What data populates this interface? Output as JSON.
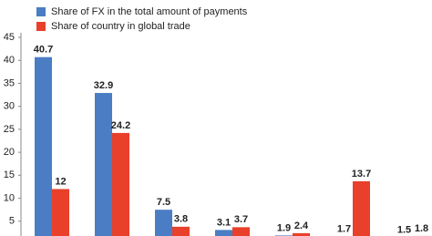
{
  "chart_data": {
    "type": "bar",
    "categories": [
      null,
      null,
      null,
      null,
      null,
      null,
      null
    ],
    "series": [
      {
        "name": "Share of FX in the total amount of payments",
        "color": "#4a7dc4",
        "values": [
          40.7,
          32.9,
          7.5,
          3.1,
          1.9,
          1.7,
          1.5
        ]
      },
      {
        "name": "Share of country in global trade",
        "color": "#e8402a",
        "values": [
          12,
          24.2,
          3.8,
          3.7,
          2.4,
          13.7,
          1.8
        ]
      }
    ],
    "ylim": [
      0,
      45
    ],
    "yticks": [
      5,
      10,
      15,
      20,
      25,
      30,
      35,
      40,
      45
    ],
    "grid": false,
    "legend": "top-left"
  }
}
